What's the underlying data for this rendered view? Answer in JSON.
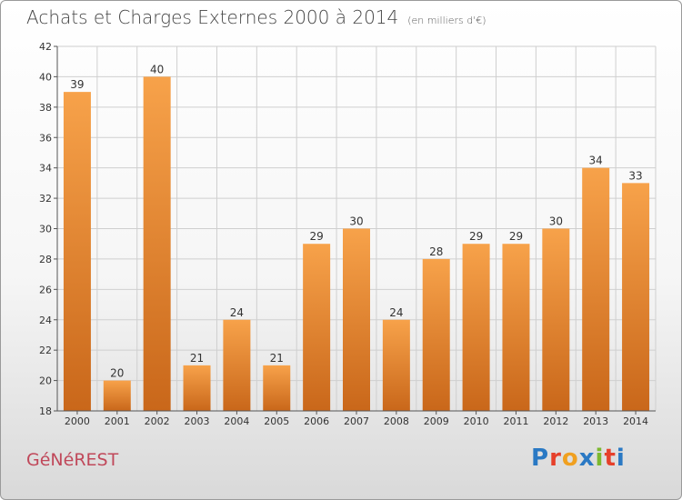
{
  "header": {
    "title": "Achats et Charges Externes 2000 à 2014",
    "unit": "(en milliers d'€)"
  },
  "footer": {
    "commune": "GéNéREST",
    "logo_letters": [
      "P",
      "r",
      "o",
      "x",
      "i",
      "t",
      "i"
    ],
    "logo_colors": [
      "#2a79c4",
      "#e6402a",
      "#f0a020",
      "#2a79c4",
      "#7cb82f",
      "#e6402a",
      "#2a79c4"
    ]
  },
  "colors": {
    "bar_top": "#f7a24a",
    "bar_bottom": "#c9671a",
    "grid": "#cfcfcf"
  },
  "chart_data": {
    "type": "bar",
    "title": "Achats et Charges Externes 2000 à 2014",
    "xlabel": "",
    "ylabel": "",
    "categories": [
      "2000",
      "2001",
      "2002",
      "2003",
      "2004",
      "2005",
      "2006",
      "2007",
      "2008",
      "2009",
      "2010",
      "2011",
      "2012",
      "2013",
      "2014"
    ],
    "values": [
      39,
      20,
      40,
      21,
      24,
      21,
      29,
      30,
      24,
      28,
      29,
      29,
      30,
      34,
      33
    ],
    "ylim": [
      18,
      42
    ],
    "yticks": [
      18,
      20,
      22,
      24,
      26,
      28,
      30,
      32,
      34,
      36,
      38,
      40,
      42
    ],
    "grid": true
  }
}
